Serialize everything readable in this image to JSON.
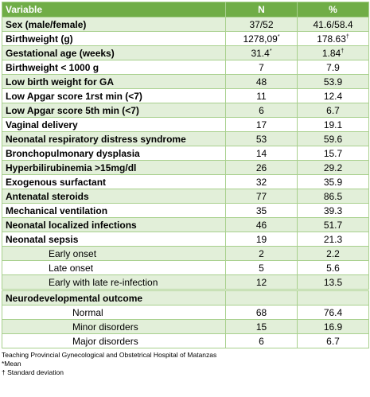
{
  "table": {
    "header": [
      "Variable",
      "N",
      "%"
    ],
    "sections": [
      {
        "rows": [
          {
            "label": "Sex (male/female)",
            "n": "37/52",
            "pct": "41.6/58.4"
          },
          {
            "label": "Birthweight (g)",
            "n": {
              "text": "1278,09",
              "sup": "*"
            },
            "pct": {
              "text": "178.63",
              "sup": "†"
            }
          },
          {
            "label": "Gestational age (weeks)",
            "n": {
              "text": "31.4",
              "sup": "*"
            },
            "pct": {
              "text": "1.84",
              "sup": "†"
            }
          },
          {
            "label": "Birthweight < 1000 g",
            "n": "7",
            "pct": "7.9"
          },
          {
            "label": "Low birth weight for GA",
            "n": "48",
            "pct": "53.9"
          },
          {
            "label": "Low Apgar score 1rst min (<7)",
            "n": "11",
            "pct": "12.4"
          },
          {
            "label": "Low Apgar score 5th min (<7)",
            "n": "6",
            "pct": "6.7"
          },
          {
            "label": "Vaginal delivery",
            "n": "17",
            "pct": "19.1"
          },
          {
            "label": "Neonatal respiratory distress syndrome",
            "n": "53",
            "pct": "59.6"
          },
          {
            "label": "Bronchopulmonary dysplasia",
            "n": "14",
            "pct": "15.7"
          },
          {
            "label": "Hyperbilirubinemia >15mg/dl",
            "n": "26",
            "pct": "29.2"
          },
          {
            "label": "Exogenous surfactant",
            "n": "32",
            "pct": "35.9"
          },
          {
            "label": "Antenatal steroids",
            "n": "77",
            "pct": "86.5"
          },
          {
            "label": "Mechanical ventilation",
            "n": "35",
            "pct": "39.3"
          },
          {
            "label": "Neonatal localized infections",
            "n": "46",
            "pct": "51.7"
          },
          {
            "label": "Neonatal sepsis",
            "n": "19",
            "pct": "21.3",
            "subrows": [
              {
                "label": "Early onset",
                "n": "2",
                "pct": "2.2"
              },
              {
                "label": "Late onset",
                "n": "5",
                "pct": "5.6"
              },
              {
                "label": "Early with late re-infection",
                "n": "12",
                "pct": "13.5"
              }
            ]
          }
        ]
      },
      {
        "rows": [
          {
            "label": "Neurodevelopmental outcome",
            "subrows": [
              {
                "label": "Normal",
                "n": "68",
                "pct": "76.4"
              },
              {
                "label": "Minor disorders",
                "n": "15",
                "pct": "16.9"
              },
              {
                "label": "Major disorders",
                "n": "6",
                "pct": "6.7"
              }
            ]
          }
        ]
      }
    ]
  },
  "footnotes": [
    "Teaching Provincial Gynecological and Obstetrical Hospital of Matanzas",
    "*Mean",
    "† Standard deviation"
  ]
}
